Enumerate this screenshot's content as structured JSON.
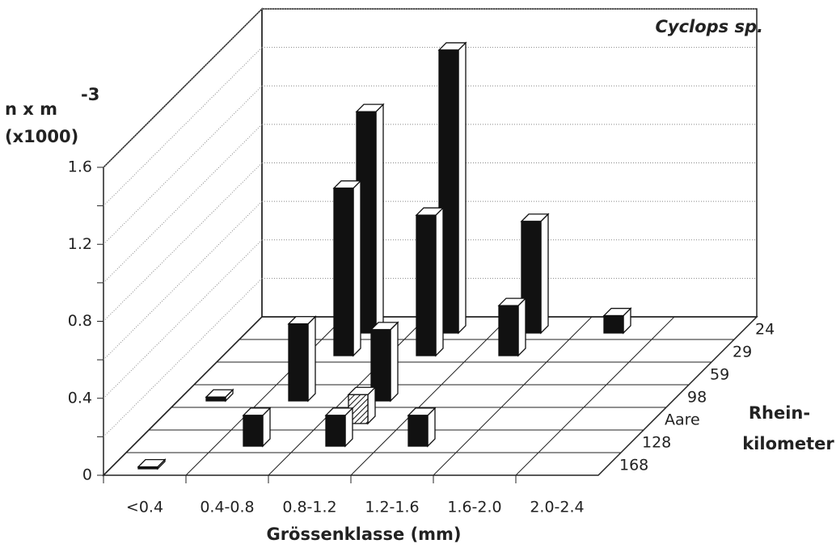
{
  "chart_data": {
    "type": "bar3d",
    "annotation": "Cyclops sp.",
    "y_label": "n x m",
    "y_label_sup": "-3",
    "y_label_unit": "(x1000)",
    "x_label": "Grössenklasse (mm)",
    "z_label": [
      "Rhein-",
      "kilometer"
    ],
    "categories": [
      "<0.4",
      "0.4-0.8",
      "0.8-1.2",
      "1.2-1.6",
      "1.6-2.0",
      "2.0-2.4"
    ],
    "ylim": [
      0,
      1.6
    ],
    "yticks": [
      0,
      0.4,
      0.8,
      1.2,
      1.6
    ],
    "minor_yticks": [
      0.2,
      0.6,
      1.0,
      1.4
    ],
    "grid": true,
    "series": [
      {
        "name": "24",
        "color": "#111111",
        "values": [
          null,
          1.15,
          1.47,
          0.58,
          0.09,
          null
        ]
      },
      {
        "name": "29",
        "color": "#111111",
        "values": [
          null,
          0.87,
          0.73,
          0.26,
          null,
          null
        ]
      },
      {
        "name": "59",
        "color": "#111111",
        "values": [
          null,
          null,
          null,
          null,
          null,
          null
        ]
      },
      {
        "name": "98",
        "color": "#111111",
        "values": [
          0.02,
          0.4,
          0.37,
          null,
          null,
          null
        ]
      },
      {
        "name": "Aare",
        "color": "#111111",
        "pattern": "hatch",
        "values": [
          null,
          null,
          0.15,
          null,
          null,
          null
        ]
      },
      {
        "name": "128",
        "color": "#111111",
        "values": [
          null,
          0.16,
          0.16,
          0.16,
          null,
          null
        ]
      },
      {
        "name": "168",
        "color": "#111111",
        "values": [
          0.01,
          null,
          null,
          null,
          null,
          null
        ]
      }
    ]
  }
}
